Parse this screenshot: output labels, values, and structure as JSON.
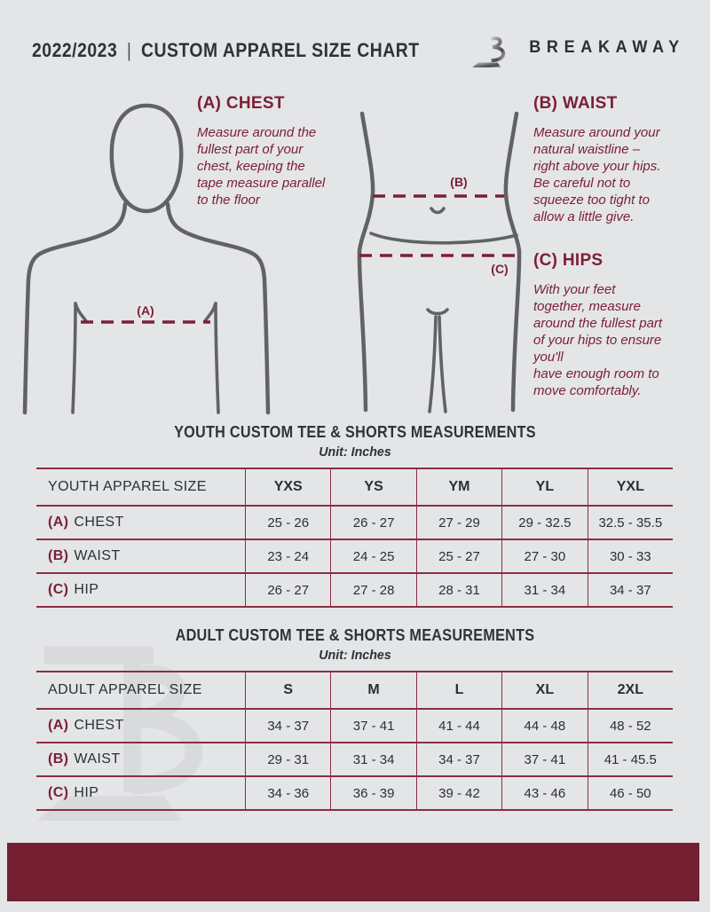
{
  "theme": {
    "bg": "#e4e5e7",
    "accent": "#7b2036",
    "line": "#8a2e42",
    "footer": "#731e31",
    "figure": "#606266",
    "text_dark": "#2f3237",
    "watermark": "#d9dadc"
  },
  "header": {
    "year": "2022/2023",
    "divider": "|",
    "title": "CUSTOM APPAREL SIZE CHART",
    "brand": "BREAKAWAY",
    "logo_icon": "breakaway-b-logo"
  },
  "instructions": [
    {
      "id": "A",
      "heading": "(A) CHEST",
      "body": "Measure around the\nfullest part of your\nchest, keeping the\ntape measure parallel\nto the floor"
    },
    {
      "id": "B",
      "heading": "(B) WAIST",
      "body": "Measure around your\nnatural waistline –\nright above your hips.\nBe careful not to\nsqueeze too tight to\nallow a little give."
    },
    {
      "id": "C",
      "heading": "(C) HIPS",
      "body": "With your feet\ntogether, measure\naround the fullest part\nof your hips to ensure\nyou'll\nhave enough room to\nmove comfortably."
    }
  ],
  "figures": {
    "chest_label": "(A)",
    "waist_label": "(B)",
    "hips_label": "(C)"
  },
  "tables": [
    {
      "title": "YOUTH CUSTOM TEE & SHORTS MEASUREMENTS",
      "unit": "Unit: Inches",
      "header": [
        "YOUTH APPAREL SIZE",
        "YXS",
        "YS",
        "YM",
        "YL",
        "YXL"
      ],
      "rows": [
        {
          "prefix": "(A)",
          "label": "CHEST",
          "values": [
            "25 - 26",
            "26 - 27",
            "27 - 29",
            "29 - 32.5",
            "32.5 - 35.5"
          ]
        },
        {
          "prefix": "(B)",
          "label": "WAIST",
          "values": [
            "23 - 24",
            "24 - 25",
            "25 - 27",
            "27 - 30",
            "30 - 33"
          ]
        },
        {
          "prefix": "(C)",
          "label": "HIP",
          "values": [
            "26 - 27",
            "27 - 28",
            "28 - 31",
            "31 - 34",
            "34 - 37"
          ]
        }
      ]
    },
    {
      "title": "ADULT CUSTOM TEE & SHORTS MEASUREMENTS",
      "unit": "Unit: Inches",
      "header": [
        "ADULT APPAREL SIZE",
        "S",
        "M",
        "L",
        "XL",
        "2XL"
      ],
      "rows": [
        {
          "prefix": "(A)",
          "label": "CHEST",
          "values": [
            "34 - 37",
            "37 - 41",
            "41 - 44",
            "44 - 48",
            "48 - 52"
          ]
        },
        {
          "prefix": "(B)",
          "label": "WAIST",
          "values": [
            "29 - 31",
            "31 - 34",
            "34 - 37",
            "37 - 41",
            "41 - 45.5"
          ]
        },
        {
          "prefix": "(C)",
          "label": "HIP",
          "values": [
            "34 - 36",
            "36 - 39",
            "39 - 42",
            "43 - 46",
            "46 - 50"
          ]
        }
      ]
    }
  ]
}
